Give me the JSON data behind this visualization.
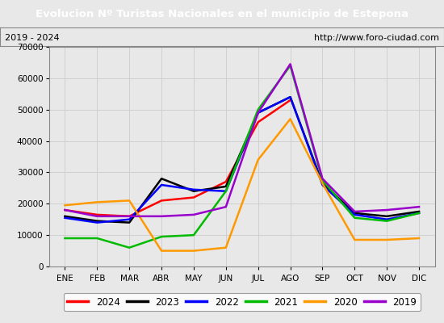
{
  "title": "Evolucion Nº Turistas Nacionales en el municipio de Estepona",
  "subtitle_left": "2019 - 2024",
  "subtitle_right": "http://www.foro-ciudad.com",
  "title_bg_color": "#4472c4",
  "title_text_color": "#ffffff",
  "months": [
    "ENE",
    "FEB",
    "MAR",
    "ABR",
    "MAY",
    "JUN",
    "JUL",
    "AGO",
    "SEP",
    "OCT",
    "NOV",
    "DIC"
  ],
  "ylim": [
    0,
    70000
  ],
  "yticks": [
    0,
    10000,
    20000,
    30000,
    40000,
    50000,
    60000,
    70000
  ],
  "series": {
    "2024": {
      "color": "#ff0000",
      "data": [
        18000,
        16500,
        16000,
        21000,
        22000,
        27000,
        46000,
        53000,
        null,
        null,
        null,
        null
      ]
    },
    "2023": {
      "color": "#000000",
      "data": [
        16000,
        14500,
        14000,
        28000,
        24000,
        25500,
        49000,
        54000,
        26500,
        17000,
        16000,
        17500
      ]
    },
    "2022": {
      "color": "#0000ff",
      "data": [
        15500,
        14000,
        15000,
        26000,
        24500,
        24000,
        49000,
        54000,
        26000,
        16500,
        15000,
        17000
      ]
    },
    "2021": {
      "color": "#00bb00",
      "data": [
        9000,
        9000,
        6000,
        9500,
        10000,
        24000,
        50000,
        64000,
        27500,
        15500,
        14500,
        17000
      ]
    },
    "2020": {
      "color": "#ff9900",
      "data": [
        19500,
        20500,
        21000,
        5000,
        5000,
        6000,
        34000,
        47000,
        26500,
        8500,
        8500,
        9000
      ]
    },
    "2019": {
      "color": "#9900cc",
      "data": [
        18000,
        16000,
        16000,
        16000,
        16500,
        19000,
        49000,
        64500,
        28000,
        17500,
        18000,
        19000
      ]
    }
  },
  "background_color": "#e8e8e8",
  "plot_bg_color": "#e8e8e8",
  "grid_color": "#cccccc"
}
